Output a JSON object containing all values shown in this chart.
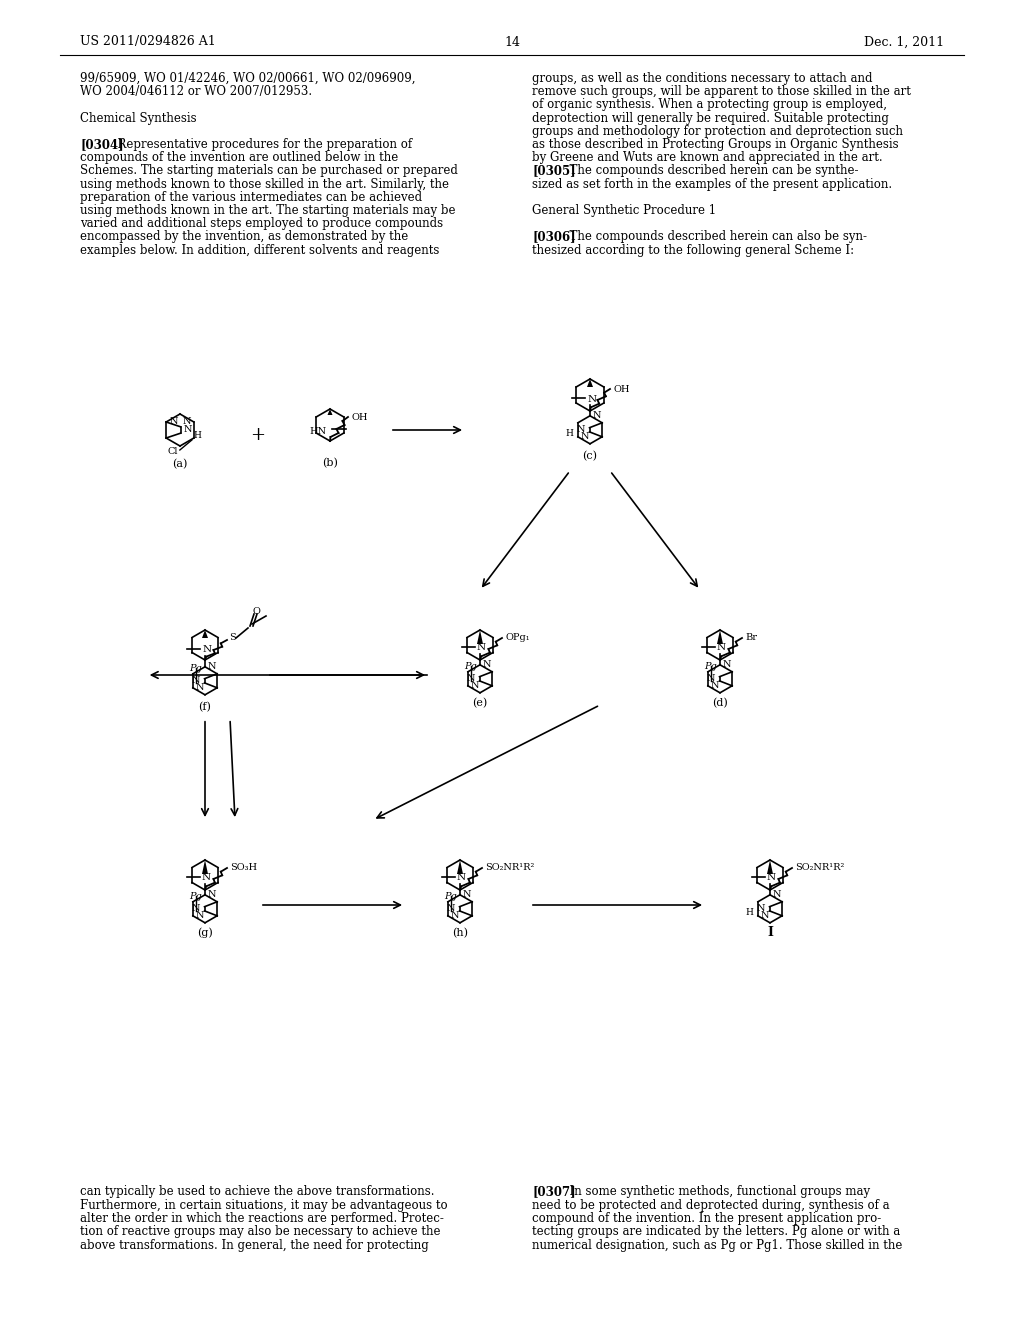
{
  "page_header_left": "US 2011/0294826 A1",
  "page_header_right": "Dec. 1, 2011",
  "page_number": "14",
  "background_color": "#ffffff",
  "text_color": "#000000",
  "left_column_text": [
    "99/65909, WO 01/42246, WO 02/00661, WO 02/096909,",
    "WO 2004/046112 or WO 2007/012953.",
    "",
    "Chemical Synthesis",
    "",
    "[0304]  Representative procedures for the preparation of",
    "compounds of the invention are outlined below in the",
    "Schemes. The starting materials can be purchased or prepared",
    "using methods known to those skilled in the art. Similarly, the",
    "preparation of the various intermediates can be achieved",
    "using methods known in the art. The starting materials may be",
    "varied and additional steps employed to produce compounds",
    "encompassed by the invention, as demonstrated by the",
    "examples below. In addition, different solvents and reagents"
  ],
  "right_column_text": [
    "groups, as well as the conditions necessary to attach and",
    "remove such groups, will be apparent to those skilled in the art",
    "of organic synthesis. When a protecting group is employed,",
    "deprotection will generally be required. Suitable protecting",
    "groups and methodology for protection and deprotection such",
    "as those described in Protecting Groups in Organic Synthesis",
    "by Greene and Wuts are known and appreciated in the art.",
    "[0305]  The compounds described herein can be synthe-",
    "sized as set forth in the examples of the present application.",
    "",
    "General Synthetic Procedure 1",
    "",
    "[0306]  The compounds described herein can also be syn-",
    "thesized according to the following general Scheme I:"
  ],
  "bottom_left_text": [
    "can typically be used to achieve the above transformations.",
    "Furthermore, in certain situations, it may be advantageous to",
    "alter the order in which the reactions are performed. Protec-",
    "tion of reactive groups may also be necessary to achieve the",
    "above transformations. In general, the need for protecting"
  ],
  "bottom_right_text": [
    "[0307]  In some synthetic methods, functional groups may",
    "need to be protected and deprotected during, synthesis of a",
    "compound of the invention. In the present application pro-",
    "tecting groups are indicated by the letters. Pg alone or with a",
    "numerical designation, such as Pg or Pg1. Those skilled in the"
  ]
}
